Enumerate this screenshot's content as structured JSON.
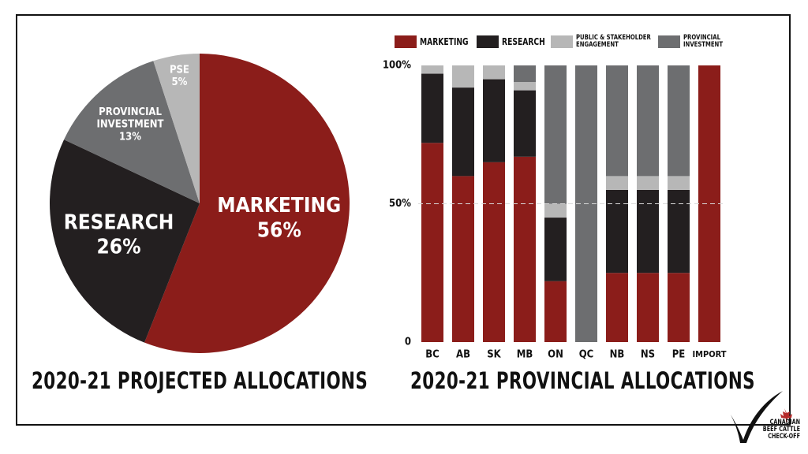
{
  "pie_title": "2020-21 PROJECTED ALLOCATIONS",
  "bar_title": "2020-21 PROVINCIAL ALLOCATIONS",
  "colors": {
    "marketing": "#8b1d1a",
    "research": "#231f20",
    "pse": "#b7b7b7",
    "provincial": "#6d6e70"
  },
  "legend": [
    {
      "label": "MARKETING",
      "color": "#8b1d1a"
    },
    {
      "label": "RESEARCH",
      "color": "#231f20"
    },
    {
      "label": "PUBLIC & STAKEHOLDER\nENGAGEMENT",
      "color": "#b7b7b7"
    },
    {
      "label": "PROVINCIAL\nINVESTMENT",
      "color": "#6d6e70"
    }
  ],
  "logo": {
    "line1": "CANADIAN",
    "line2": "BEEF CATTLE",
    "line3": "CHECK-OFF"
  },
  "chart_data": [
    {
      "type": "pie",
      "title": "2020-21 PROJECTED ALLOCATIONS",
      "slices": [
        {
          "label": "MARKETING",
          "value": 56,
          "display": "56%",
          "color": "#8b1d1a"
        },
        {
          "label": "RESEARCH",
          "value": 26,
          "display": "26%",
          "color": "#231f20"
        },
        {
          "label": "PROVINCIAL\nINVESTMENT",
          "value": 13,
          "display": "13%",
          "color": "#6d6e70"
        },
        {
          "label": "PSE",
          "value": 5,
          "display": "5%",
          "color": "#b7b7b7"
        }
      ]
    },
    {
      "type": "bar",
      "stacked": true,
      "title": "2020-21 PROVINCIAL ALLOCATIONS",
      "categories": [
        "BC",
        "AB",
        "SK",
        "MB",
        "ON",
        "QC",
        "NB",
        "NS",
        "PE",
        "IMPORT"
      ],
      "ylim": [
        0,
        100
      ],
      "yticks": [
        {
          "value": 0,
          "label": "0"
        },
        {
          "value": 50,
          "label": "50%"
        },
        {
          "value": 100,
          "label": "100%"
        }
      ],
      "reference_line": 50,
      "series": [
        {
          "name": "MARKETING",
          "color": "#8b1d1a",
          "values": [
            72,
            60,
            65,
            67,
            22,
            0,
            25,
            25,
            25,
            100
          ]
        },
        {
          "name": "RESEARCH",
          "color": "#231f20",
          "values": [
            25,
            32,
            30,
            24,
            23,
            0,
            30,
            30,
            30,
            0
          ]
        },
        {
          "name": "PUBLIC & STAKEHOLDER ENGAGEMENT",
          "color": "#b7b7b7",
          "values": [
            3,
            8,
            5,
            3,
            5,
            0,
            5,
            5,
            5,
            0
          ]
        },
        {
          "name": "PROVINCIAL INVESTMENT",
          "color": "#6d6e70",
          "values": [
            0,
            0,
            0,
            6,
            50,
            100,
            40,
            40,
            40,
            0
          ]
        }
      ]
    }
  ]
}
